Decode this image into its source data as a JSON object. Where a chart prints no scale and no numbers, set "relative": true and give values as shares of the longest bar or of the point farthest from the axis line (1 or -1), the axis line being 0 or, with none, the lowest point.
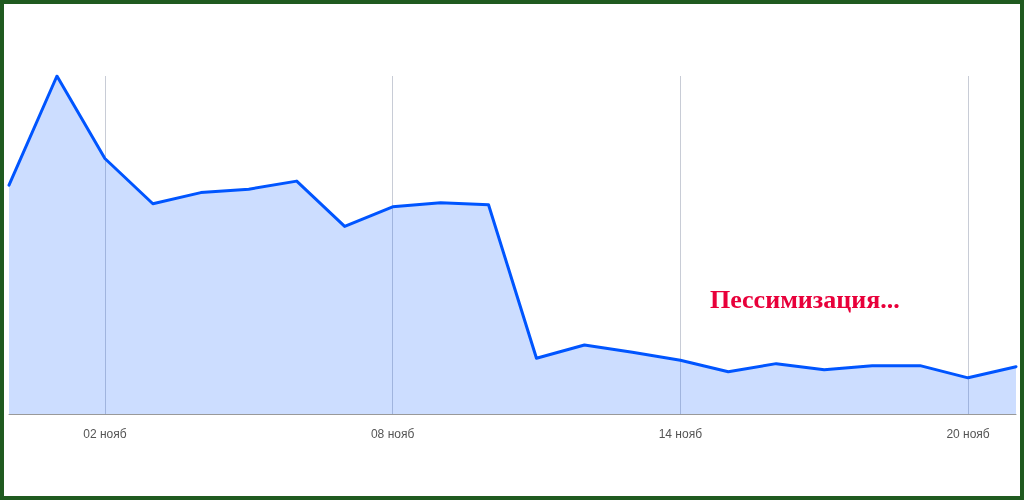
{
  "chart_data": {
    "type": "area",
    "relative": true,
    "categories": [
      null,
      null,
      "02 нояб",
      null,
      null,
      null,
      null,
      null,
      "08 нояб",
      null,
      null,
      null,
      null,
      null,
      "14 нояб",
      null,
      null,
      null,
      null,
      null,
      "20 нояб",
      null
    ],
    "series": [
      {
        "color": "#0055ff",
        "values": [
          0.677,
          1,
          0.756,
          0.622,
          0.655,
          0.665,
          0.689,
          0.555,
          0.613,
          0.625,
          0.619,
          0.165,
          0.204,
          0.183,
          0.159,
          0.125,
          0.149,
          0.131,
          0.143,
          0.143,
          0.107,
          0.14
        ]
      }
    ],
    "annotations": [
      "Пессимизация..."
    ],
    "grid": "x",
    "marker": "none",
    "line_style": "solid"
  }
}
